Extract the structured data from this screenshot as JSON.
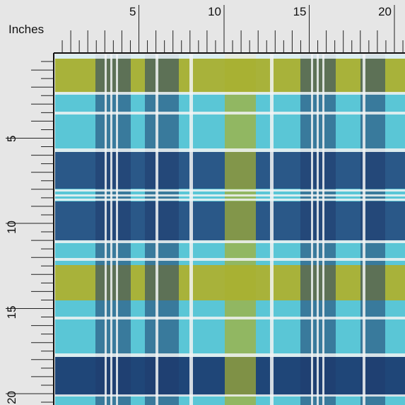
{
  "ruler": {
    "unit_label": "Inches",
    "top_labels": [
      "5",
      "10",
      "15",
      "20"
    ],
    "left_labels": [
      "5",
      "10",
      "15",
      "20"
    ]
  }
}
